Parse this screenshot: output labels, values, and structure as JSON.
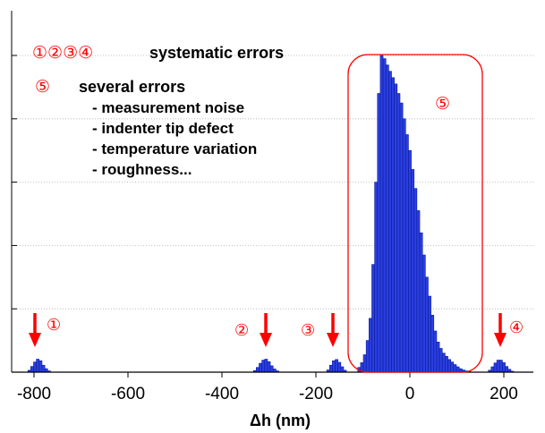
{
  "colors": {
    "bar_fill": "#2b3fe0",
    "bar_stroke": "#0a1a9a",
    "annotation": "#ff0000",
    "axis": "#000000",
    "grid": "#b0b0b0"
  },
  "annotations": {
    "legend_markers_1": "①②③④",
    "legend_text_1": "systematic errors",
    "legend_marker_5": "⑤",
    "legend_text_5": "several errors",
    "causes": [
      "- measurement noise",
      "- indenter tip defect",
      "- temperature variation",
      "- roughness..."
    ],
    "arrow_labels": [
      "①",
      "②",
      "③",
      "④"
    ],
    "box_label": "⑤"
  },
  "chart_data": {
    "type": "bar",
    "xlabel": "Δh (nm)",
    "ylabel": "",
    "title": "",
    "xlim": [
      -835,
      280
    ],
    "ylim": [
      0,
      1.02
    ],
    "xticks": [
      -800,
      -600,
      -400,
      -200,
      0,
      200
    ],
    "grid": "horizontal",
    "bin_width": 6,
    "clusters": [
      {
        "name": "①",
        "x": [
          -810,
          -804,
          -798,
          -792,
          -786,
          -780,
          -774,
          -768
        ],
        "values": [
          0.006,
          0.018,
          0.032,
          0.041,
          0.036,
          0.022,
          0.011,
          0.004
        ]
      },
      {
        "name": "②",
        "x": [
          -330,
          -324,
          -318,
          -312,
          -306,
          -300,
          -294,
          -288,
          -282
        ],
        "values": [
          0.005,
          0.015,
          0.028,
          0.038,
          0.041,
          0.033,
          0.02,
          0.01,
          0.004
        ]
      },
      {
        "name": "③",
        "x": [
          -174,
          -168,
          -162,
          -156,
          -150,
          -144,
          -138
        ],
        "values": [
          0.007,
          0.022,
          0.036,
          0.04,
          0.031,
          0.017,
          0.006
        ]
      },
      {
        "name": "⑤",
        "x": [
          -108,
          -102,
          -96,
          -90,
          -84,
          -78,
          -72,
          -66,
          -60,
          -54,
          -48,
          -42,
          -36,
          -30,
          -24,
          -18,
          -12,
          -6,
          0,
          6,
          12,
          18,
          24,
          30,
          36,
          42,
          48,
          54,
          60,
          66,
          72,
          78,
          84,
          90,
          96,
          102,
          108,
          114,
          120,
          126
        ],
        "values": [
          0.015,
          0.03,
          0.055,
          0.1,
          0.17,
          0.34,
          0.6,
          0.88,
          1.0,
          0.99,
          0.97,
          0.95,
          0.93,
          0.91,
          0.88,
          0.85,
          0.8,
          0.75,
          0.7,
          0.64,
          0.58,
          0.51,
          0.44,
          0.37,
          0.3,
          0.24,
          0.18,
          0.13,
          0.095,
          0.075,
          0.06,
          0.05,
          0.04,
          0.032,
          0.024,
          0.017,
          0.011,
          0.007,
          0.004,
          0.002
        ]
      },
      {
        "name": "④",
        "x": [
          170,
          176,
          182,
          188,
          194,
          200,
          206,
          212,
          218
        ],
        "values": [
          0.006,
          0.017,
          0.029,
          0.038,
          0.038,
          0.03,
          0.018,
          0.009,
          0.003
        ]
      }
    ],
    "arrows_at": [
      -790,
      -302,
      -155,
      187
    ]
  }
}
